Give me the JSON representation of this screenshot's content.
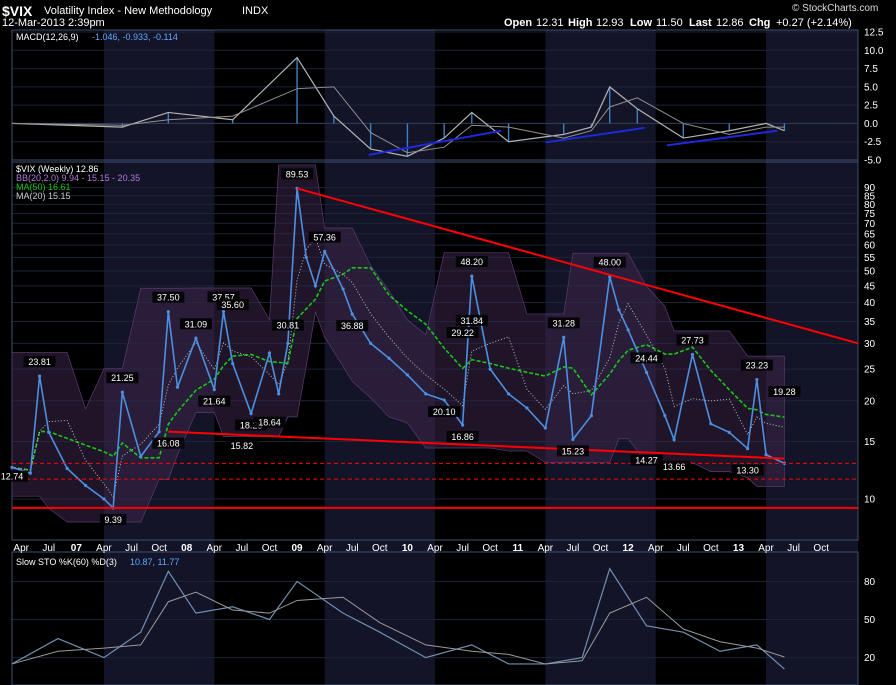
{
  "header": {
    "symbol": "$VIX",
    "name": "Volatility Index - New Methodology",
    "exchange": "INDX",
    "date": "12-Mar-2013 2:39pm",
    "watermark": "© StockCharts.com",
    "quote": {
      "open_label": "Open",
      "open": "12.31",
      "high_label": "High",
      "high": "12.93",
      "low_label": "Low",
      "low": "11.50",
      "last_label": "Last",
      "last": "12.86",
      "chg_label": "Chg",
      "chg": "+0.27 (+2.14%)"
    }
  },
  "panels": {
    "macd": {
      "label": "MACD(12,26,9)",
      "values": "-1.046, -0.933, -0.114",
      "ticks": [
        "12.5",
        "10.0",
        "7.5",
        "5.0",
        "2.5",
        "0.0",
        "-2.5",
        "-5.0"
      ]
    },
    "price": {
      "legend": [
        {
          "label": "$VIX (Weekly) 12.86",
          "color": "#ffffff"
        },
        {
          "label": "BB(20,2.0) 9.94 - 15.15 - 20.35",
          "color": "#b07ad8"
        },
        {
          "label": "MA(50) 16.61",
          "color": "#18c618"
        },
        {
          "label": "MA(20) 15.15",
          "color": "#c8c8c8"
        }
      ],
      "ticks": [
        "90",
        "85",
        "80",
        "75",
        "70",
        "65",
        "60",
        "55",
        "50",
        "45",
        "40",
        "35",
        "30",
        "25",
        "20",
        "15",
        "10"
      ]
    },
    "sto": {
      "label": "Slow STO %K(60) %D(3)",
      "values": "10.87, 11.77",
      "ticks": [
        "80",
        "50",
        "20"
      ]
    }
  },
  "x_axis": [
    "Apr",
    "Jul",
    "07",
    "Apr",
    "Jul",
    "Oct",
    "08",
    "Apr",
    "Jul",
    "Oct",
    "09",
    "Apr",
    "Jul",
    "Oct",
    "10",
    "Apr",
    "Jul",
    "Oct",
    "11",
    "Apr",
    "Jul",
    "Oct",
    "12",
    "Apr",
    "Jul",
    "Oct",
    "13",
    "Apr",
    "Jul",
    "Oct"
  ],
  "colors": {
    "background": "#000000",
    "band": "#141428",
    "price": "#4d8fe0",
    "macd_line": "#b4b4b4",
    "trendline": "#ff0000",
    "macd_trendline": "#1e28dc",
    "ma50": "#18c618",
    "bollinger": "#3a2448"
  },
  "chart_data": {
    "type": "line",
    "title": "$VIX Volatility Index - New Methodology INDX",
    "x_range": [
      "2006-03",
      "2013-11"
    ],
    "y_scale": "log",
    "ylim": [
      8.5,
      95
    ],
    "price_series": {
      "name": "$VIX (Weekly)",
      "x": [
        "2006-03",
        "2006-05",
        "2006-06",
        "2006-07",
        "2006-09",
        "2006-11",
        "2007-01",
        "2007-02",
        "2007-03",
        "2007-05",
        "2007-07",
        "2007-08",
        "2007-09",
        "2007-11",
        "2008-01",
        "2008-02",
        "2008-03",
        "2008-05",
        "2008-07",
        "2008-08",
        "2008-09",
        "2008-10",
        "2008-11",
        "2008-12",
        "2009-01",
        "2009-03",
        "2009-04",
        "2009-06",
        "2009-08",
        "2009-10",
        "2009-12",
        "2010-02",
        "2010-04",
        "2010-05",
        "2010-07",
        "2010-09",
        "2010-11",
        "2011-01",
        "2011-03",
        "2011-04",
        "2011-06",
        "2011-08",
        "2011-09",
        "2011-10",
        "2011-12",
        "2012-02",
        "2012-03",
        "2012-05",
        "2012-07",
        "2012-09",
        "2012-11",
        "2012-12",
        "2013-01",
        "2013-03"
      ],
      "values": [
        12.5,
        12.0,
        23.81,
        16.0,
        12.4,
        11.0,
        10.0,
        9.39,
        21.25,
        13.5,
        16.08,
        37.5,
        22.0,
        31.09,
        21.64,
        37.57,
        26.0,
        18.28,
        28.0,
        21.0,
        30.0,
        89.53,
        55.0,
        45.0,
        57.36,
        44.0,
        36.88,
        30.0,
        27.0,
        24.0,
        21.0,
        20.1,
        16.86,
        48.2,
        25.0,
        21.0,
        19.0,
        16.5,
        31.28,
        15.23,
        18.0,
        48.0,
        38.0,
        33.0,
        24.44,
        18.0,
        15.2,
        27.73,
        17.0,
        16.0,
        14.27,
        23.23,
        13.66,
        12.86
      ]
    },
    "annotations": [
      "23.81",
      "12.74",
      "9.39",
      "21.25",
      "37.50",
      "16.08",
      "31.09",
      "18.28",
      "37.57",
      "35.60",
      "21.64",
      "15.82",
      "30.81",
      "18.64",
      "89.53",
      "57.36",
      "36.88",
      "31.84",
      "20.10",
      "29.22",
      "16.86",
      "48.20",
      "15.23",
      "31.28",
      "14.27",
      "48.00",
      "24.44",
      "13.66",
      "27.73",
      "13.30",
      "23.23",
      "19.28"
    ],
    "ma50_series": {
      "name": "MA(50)",
      "latest": 16.61
    },
    "ma20_series": {
      "name": "MA(20)",
      "latest": 15.15
    },
    "bollinger": {
      "name": "BB(20,2.0)",
      "lower": 9.94,
      "mid": 15.15,
      "upper": 20.35
    },
    "trendlines": [
      {
        "from": [
          "2008-10",
          89.53
        ],
        "to": [
          "2013-11",
          30.0
        ]
      },
      {
        "from": [
          "2007-08",
          16.08
        ],
        "to": [
          "2013-03",
          13.3
        ]
      }
    ],
    "horizontal_lines": [
      {
        "value": 9.39,
        "style": "solid"
      },
      {
        "value": 12.86,
        "style": "dashed"
      },
      {
        "value": 11.5,
        "style": "dashed"
      }
    ],
    "macd": {
      "name": "MACD(12,26,9)",
      "latest": [
        -1.046,
        -0.933,
        -0.114
      ],
      "ylim": [
        -5.0,
        12.5
      ],
      "x": [
        "2006-03",
        "2007-03",
        "2007-08",
        "2008-03",
        "2008-10",
        "2009-02",
        "2009-06",
        "2009-10",
        "2010-02",
        "2010-05",
        "2010-09",
        "2011-03",
        "2011-06",
        "2011-08",
        "2011-11",
        "2012-04",
        "2012-09",
        "2013-01",
        "2013-03"
      ],
      "values": [
        0.0,
        -0.5,
        1.5,
        0.5,
        9.0,
        1.0,
        -3.5,
        -4.5,
        -2.0,
        1.5,
        -2.5,
        -1.5,
        -0.5,
        5.0,
        2.0,
        -2.0,
        -1.0,
        0.0,
        -1.0
      ]
    },
    "slow_sto": {
      "name": "Slow STO",
      "latest": [
        10.87,
        11.77
      ],
      "ylim": [
        0,
        100
      ],
      "x": [
        "2006-03",
        "2006-08",
        "2007-01",
        "2007-05",
        "2007-08",
        "2007-11",
        "2008-03",
        "2008-07",
        "2008-10",
        "2009-03",
        "2009-07",
        "2009-12",
        "2010-05",
        "2010-09",
        "2011-01",
        "2011-05",
        "2011-08",
        "2011-12",
        "2012-04",
        "2012-08",
        "2012-12",
        "2013-03"
      ],
      "values": [
        15,
        35,
        20,
        40,
        88,
        55,
        60,
        50,
        80,
        55,
        40,
        20,
        30,
        15,
        15,
        20,
        90,
        45,
        40,
        25,
        30,
        11
      ]
    }
  }
}
